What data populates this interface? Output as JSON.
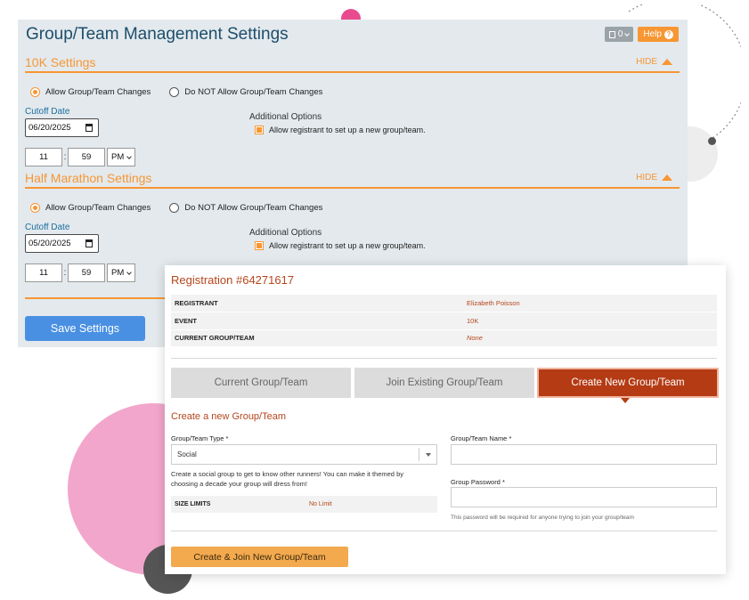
{
  "settings": {
    "title": "Group/Team Management Settings",
    "notes_count": "0",
    "help_label": "Help",
    "save_label": "Save Settings",
    "sections": [
      {
        "title": "10K Settings",
        "hide_label": "HIDE",
        "allow_label": "Allow Group/Team Changes",
        "disallow_label": "Do NOT Allow Group/Team Changes",
        "allow_selected": true,
        "cutoff_label": "Cutoff Date",
        "cutoff_date": "06/20/2025",
        "additional_label": "Additional Options",
        "option_label": "Allow registrant to set up a new group/team.",
        "hour": "11",
        "minute": "59",
        "ampm": "PM"
      },
      {
        "title": "Half Marathon Settings",
        "hide_label": "HIDE",
        "allow_label": "Allow Group/Team Changes",
        "disallow_label": "Do NOT Allow Group/Team Changes",
        "allow_selected": true,
        "cutoff_label": "Cutoff Date",
        "cutoff_date": "05/20/2025",
        "additional_label": "Additional Options",
        "option_label": "Allow registrant to set up a new group/team.",
        "hour": "11",
        "minute": "59",
        "ampm": "PM"
      }
    ]
  },
  "registration": {
    "title": "Registration #64271617",
    "rows": [
      {
        "label": "REGISTRANT",
        "value": "Elizabeth Poisson"
      },
      {
        "label": "EVENT",
        "value": "10K"
      },
      {
        "label": "CURRENT GROUP/TEAM",
        "value": "None"
      }
    ],
    "tabs": [
      {
        "label": "Current Group/Team",
        "active": false
      },
      {
        "label": "Join Existing Group/Team",
        "active": false
      },
      {
        "label": "Create New Group/Team",
        "active": true
      }
    ],
    "form": {
      "heading": "Create a new Group/Team",
      "type_label": "Group/Team Type *",
      "type_value": "Social",
      "type_description": "Create a social group to get to know other runners! You can make it themed by choosing a decade your group will dress from!",
      "size_label": "SIZE LIMITS",
      "size_value": "No Limit",
      "name_label": "Group/Team Name *",
      "name_value": "",
      "password_label": "Group Password *",
      "password_value": "",
      "password_note": "This password will be required for anyone trying to join your group/team",
      "submit_label": "Create & Join New Group/Team"
    }
  },
  "colors": {
    "accent_orange": "#f79633",
    "title_blue": "#1d4e6b",
    "rust": "#b43b14",
    "save_blue": "#4a90e2"
  }
}
